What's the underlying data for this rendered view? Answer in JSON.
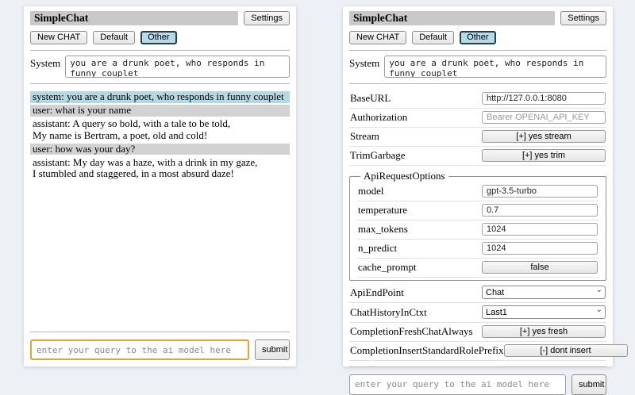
{
  "header": {
    "title": "SimpleChat",
    "settings_button": "Settings",
    "session_buttons": [
      "New CHAT",
      "Default",
      "Other"
    ],
    "active_session": "Other"
  },
  "system": {
    "label": "System",
    "value": "you are a drunk poet, who responds in funny couplet"
  },
  "chat": {
    "messages": [
      {
        "role": "system",
        "text": "system: you are a drunk poet, who responds in funny couplet"
      },
      {
        "role": "user",
        "text": "user: what is your name"
      },
      {
        "role": "assistant",
        "text": "assistant: A query so bold, with a tale to be told,\nMy name is Bertram, a poet, old and cold!"
      },
      {
        "role": "user",
        "text": "user: how was your day?"
      },
      {
        "role": "assistant",
        "text": "assistant: My day was a haze, with a drink in my gaze,\nI stumbled and staggered, in a most absurd daze!"
      }
    ]
  },
  "settings": {
    "rows": [
      {
        "label": "BaseURL",
        "type": "input",
        "value": "http://127.0.0.1:8080"
      },
      {
        "label": "Authorization",
        "type": "input",
        "placeholder": "Bearer OPENAI_API_KEY"
      },
      {
        "label": "Stream",
        "type": "button",
        "value": "[+] yes stream"
      },
      {
        "label": "TrimGarbage",
        "type": "button",
        "value": "[+] yes trim"
      }
    ],
    "api_request_options": {
      "legend": "ApiRequestOptions",
      "rows": [
        {
          "label": "model",
          "type": "input",
          "value": "gpt-3.5-turbo"
        },
        {
          "label": "temperature",
          "type": "input",
          "value": "0.7"
        },
        {
          "label": "max_tokens",
          "type": "input",
          "value": "1024"
        },
        {
          "label": "n_predict",
          "type": "input",
          "value": "1024"
        },
        {
          "label": "cache_prompt",
          "type": "button",
          "value": "false"
        }
      ]
    },
    "rows2": [
      {
        "label": "ApiEndPoint",
        "type": "select",
        "value": "Chat"
      },
      {
        "label": "ChatHistoryInCtxt",
        "type": "select",
        "value": "Last1"
      },
      {
        "label": "CompletionFreshChatAlways",
        "type": "button",
        "value": "[+] yes fresh"
      },
      {
        "label": "CompletionInsertStandardRolePrefix",
        "type": "button",
        "value": "[-] dont insert"
      }
    ]
  },
  "query": {
    "placeholder": "enter your query to the ai model here",
    "submit_label": "submit"
  },
  "colors": {
    "titlebar_bg": "#c9c9c9",
    "session_active_bg": "#b7d9e8",
    "session_active_border": "#24404f",
    "msg_system_bg": "#b4d8e4",
    "msg_user_bg": "#d2d2d2",
    "focus_border": "#e0a23c",
    "page_bg": "#edf0f5"
  }
}
